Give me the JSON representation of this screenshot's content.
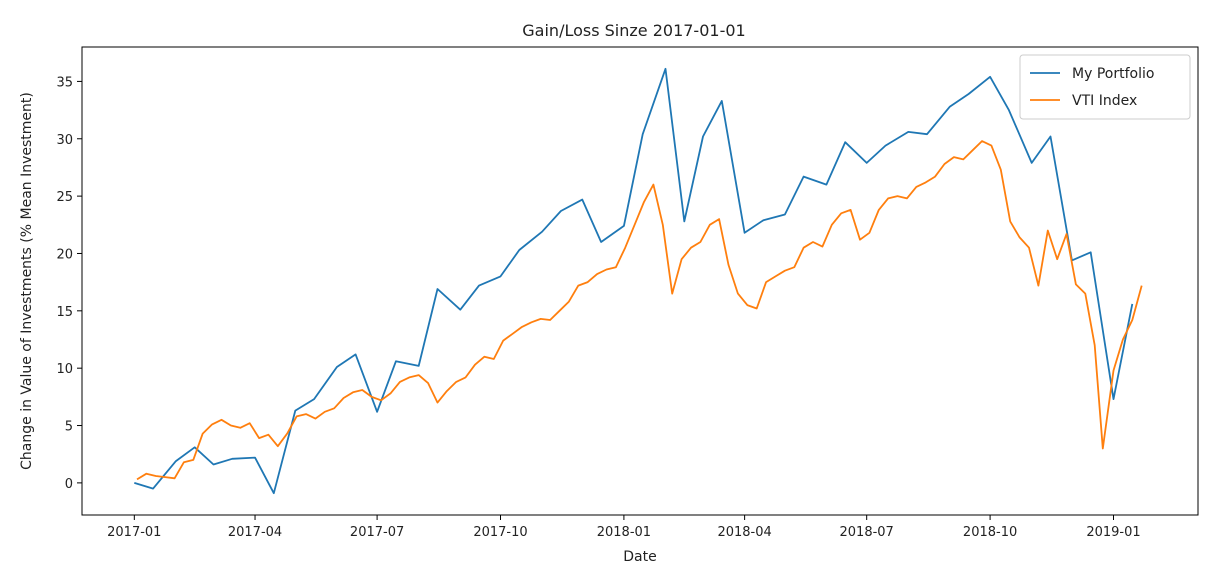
{
  "chart_data": {
    "type": "line",
    "title": "Gain/Loss Sinze 2017-01-01",
    "xlabel": "Date",
    "ylabel": "Change in Value of Investments (% Mean Investment)",
    "xlim": [
      "2016-11-23",
      "2019-03-05"
    ],
    "ylim": [
      -2.8,
      38
    ],
    "x_ticks": [
      {
        "date": "2017-01-01",
        "label": "2017-01"
      },
      {
        "date": "2017-04-01",
        "label": "2017-04"
      },
      {
        "date": "2017-07-01",
        "label": "2017-07"
      },
      {
        "date": "2017-10-01",
        "label": "2017-10"
      },
      {
        "date": "2018-01-01",
        "label": "2018-01"
      },
      {
        "date": "2018-04-01",
        "label": "2018-04"
      },
      {
        "date": "2018-07-01",
        "label": "2018-07"
      },
      {
        "date": "2018-10-01",
        "label": "2018-10"
      },
      {
        "date": "2019-01-01",
        "label": "2019-01"
      }
    ],
    "y_ticks": [
      0,
      5,
      10,
      15,
      20,
      25,
      30,
      35
    ],
    "grid": false,
    "legend": "top-right",
    "series": [
      {
        "name": "My Portfolio",
        "color": "#1f77b4",
        "x": [
          "2017-01-01",
          "2017-01-15",
          "2017-02-01",
          "2017-02-15",
          "2017-03-01",
          "2017-03-15",
          "2017-04-01",
          "2017-04-15",
          "2017-05-01",
          "2017-05-15",
          "2017-06-01",
          "2017-06-15",
          "2017-07-01",
          "2017-07-15",
          "2017-08-01",
          "2017-08-15",
          "2017-09-01",
          "2017-09-15",
          "2017-10-01",
          "2017-10-15",
          "2017-11-01",
          "2017-11-15",
          "2017-12-01",
          "2017-12-15",
          "2018-01-01",
          "2018-01-15",
          "2018-02-01",
          "2018-02-15",
          "2018-03-01",
          "2018-03-15",
          "2018-04-01",
          "2018-04-15",
          "2018-05-01",
          "2018-05-15",
          "2018-06-01",
          "2018-06-15",
          "2018-07-01",
          "2018-07-15",
          "2018-08-01",
          "2018-08-15",
          "2018-09-01",
          "2018-09-15",
          "2018-10-01",
          "2018-10-15",
          "2018-11-01",
          "2018-11-15",
          "2018-12-01",
          "2018-12-15",
          "2019-01-01",
          "2019-01-15"
        ],
        "y": [
          0.0,
          -0.5,
          1.9,
          3.1,
          1.6,
          2.1,
          2.2,
          -0.9,
          6.3,
          7.3,
          10.1,
          11.2,
          6.2,
          10.6,
          10.2,
          16.9,
          15.1,
          17.2,
          18.0,
          20.3,
          21.9,
          23.7,
          24.7,
          21.0,
          22.4,
          30.4,
          36.1,
          22.8,
          30.2,
          33.3,
          21.8,
          22.9,
          23.4,
          26.7,
          26.0,
          29.7,
          27.9,
          29.4,
          30.6,
          30.4,
          32.8,
          33.9,
          35.4,
          32.5,
          27.9,
          30.2,
          19.4,
          20.1,
          7.3,
          15.6
        ]
      },
      {
        "name": "VTI Index",
        "color": "#ff7f0e",
        "x": [
          "2017-01-03",
          "2017-01-10",
          "2017-01-17",
          "2017-01-24",
          "2017-01-31",
          "2017-02-07",
          "2017-02-14",
          "2017-02-21",
          "2017-02-28",
          "2017-03-07",
          "2017-03-14",
          "2017-03-21",
          "2017-03-28",
          "2017-04-04",
          "2017-04-11",
          "2017-04-18",
          "2017-04-25",
          "2017-05-02",
          "2017-05-09",
          "2017-05-16",
          "2017-05-23",
          "2017-05-30",
          "2017-06-06",
          "2017-06-13",
          "2017-06-20",
          "2017-06-27",
          "2017-07-04",
          "2017-07-11",
          "2017-07-18",
          "2017-07-25",
          "2017-08-01",
          "2017-08-08",
          "2017-08-15",
          "2017-08-22",
          "2017-08-29",
          "2017-09-05",
          "2017-09-12",
          "2017-09-19",
          "2017-09-26",
          "2017-10-03",
          "2017-10-10",
          "2017-10-17",
          "2017-10-24",
          "2017-10-31",
          "2017-11-07",
          "2017-11-14",
          "2017-11-21",
          "2017-11-28",
          "2017-12-05",
          "2017-12-12",
          "2017-12-19",
          "2017-12-26",
          "2018-01-02",
          "2018-01-09",
          "2018-01-16",
          "2018-01-23",
          "2018-01-30",
          "2018-02-06",
          "2018-02-13",
          "2018-02-20",
          "2018-02-27",
          "2018-03-06",
          "2018-03-13",
          "2018-03-20",
          "2018-03-27",
          "2018-04-03",
          "2018-04-10",
          "2018-04-17",
          "2018-04-24",
          "2018-05-01",
          "2018-05-08",
          "2018-05-15",
          "2018-05-22",
          "2018-05-29",
          "2018-06-05",
          "2018-06-12",
          "2018-06-19",
          "2018-06-26",
          "2018-07-03",
          "2018-07-10",
          "2018-07-17",
          "2018-07-24",
          "2018-07-31",
          "2018-08-07",
          "2018-08-14",
          "2018-08-21",
          "2018-08-28",
          "2018-09-04",
          "2018-09-11",
          "2018-09-18",
          "2018-09-25",
          "2018-10-02",
          "2018-10-09",
          "2018-10-16",
          "2018-10-23",
          "2018-10-30",
          "2018-11-06",
          "2018-11-13",
          "2018-11-20",
          "2018-11-27",
          "2018-12-04",
          "2018-12-11",
          "2018-12-18",
          "2018-12-24",
          "2019-01-01",
          "2019-01-08",
          "2019-01-15",
          "2019-01-22"
        ],
        "y": [
          0.3,
          0.8,
          0.6,
          0.5,
          0.4,
          1.8,
          2.0,
          4.3,
          5.1,
          5.5,
          5.0,
          4.8,
          5.2,
          3.9,
          4.2,
          3.2,
          4.3,
          5.8,
          6.0,
          5.6,
          6.2,
          6.5,
          7.4,
          7.9,
          8.1,
          7.5,
          7.2,
          7.8,
          8.8,
          9.2,
          9.4,
          8.7,
          7.0,
          8.0,
          8.8,
          9.2,
          10.3,
          11.0,
          10.8,
          12.4,
          13.0,
          13.6,
          14.0,
          14.3,
          14.2,
          15.0,
          15.8,
          17.2,
          17.5,
          18.2,
          18.6,
          18.8,
          20.5,
          22.5,
          24.5,
          26.0,
          22.5,
          16.5,
          19.5,
          20.5,
          21.0,
          22.5,
          23.0,
          19.0,
          16.5,
          15.5,
          15.2,
          17.5,
          18.0,
          18.5,
          18.8,
          20.5,
          21.0,
          20.6,
          22.5,
          23.5,
          23.8,
          21.2,
          21.8,
          23.8,
          24.8,
          25.0,
          24.8,
          25.8,
          26.2,
          26.7,
          27.8,
          28.4,
          28.2,
          29.0,
          29.8,
          29.4,
          27.3,
          22.8,
          21.4,
          20.5,
          17.2,
          22.0,
          19.5,
          21.7,
          17.3,
          16.5,
          12.0,
          3.0,
          9.8,
          12.5,
          14.2,
          17.2
        ]
      }
    ]
  }
}
